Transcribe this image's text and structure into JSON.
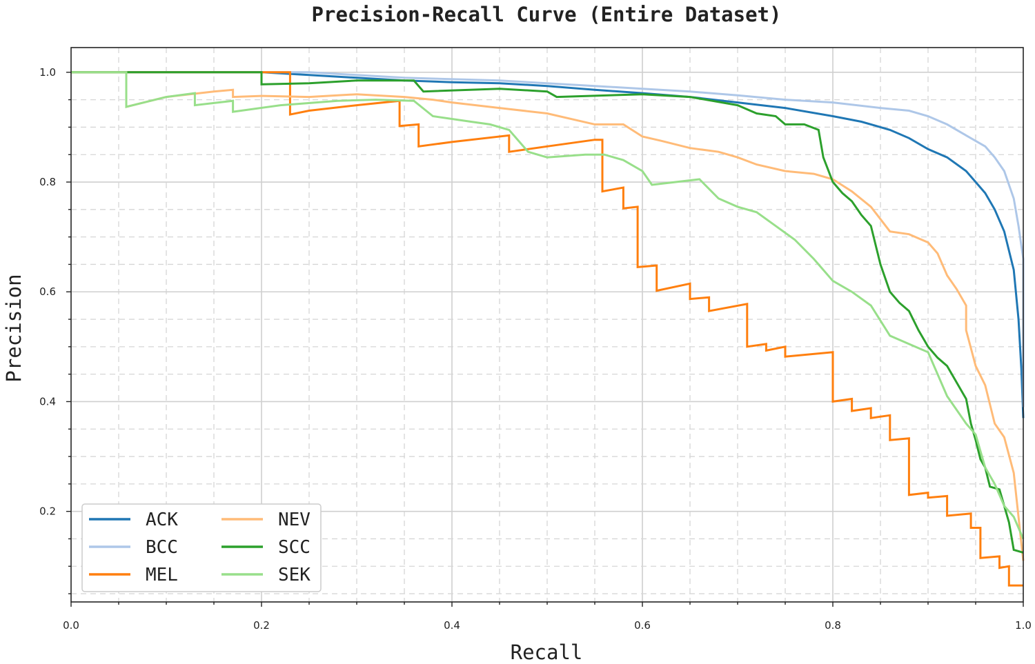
{
  "chart_data": {
    "type": "line",
    "title": "Precision-Recall Curve (Entire Dataset)",
    "xlabel": "Recall",
    "ylabel": "Precision",
    "xlim": [
      0,
      1
    ],
    "ylim": [
      0.035,
      1.045
    ],
    "xticks": [
      "0.0",
      "0.2",
      "0.4",
      "0.6",
      "0.8",
      "1.0"
    ],
    "yticks": [
      "0.2",
      "0.4",
      "0.6",
      "0.8",
      "1.0"
    ],
    "grid": true,
    "legend_position": "lower-left",
    "series": [
      {
        "name": "ACK",
        "color": "#1f77b4",
        "points": [
          [
            0,
            1
          ],
          [
            0.2,
            1
          ],
          [
            0.25,
            0.995
          ],
          [
            0.3,
            0.99
          ],
          [
            0.35,
            0.985
          ],
          [
            0.4,
            0.982
          ],
          [
            0.45,
            0.98
          ],
          [
            0.5,
            0.975
          ],
          [
            0.55,
            0.968
          ],
          [
            0.6,
            0.962
          ],
          [
            0.65,
            0.955
          ],
          [
            0.7,
            0.945
          ],
          [
            0.75,
            0.935
          ],
          [
            0.8,
            0.92
          ],
          [
            0.83,
            0.91
          ],
          [
            0.86,
            0.895
          ],
          [
            0.88,
            0.88
          ],
          [
            0.9,
            0.86
          ],
          [
            0.92,
            0.845
          ],
          [
            0.94,
            0.82
          ],
          [
            0.95,
            0.8
          ],
          [
            0.96,
            0.78
          ],
          [
            0.97,
            0.75
          ],
          [
            0.98,
            0.71
          ],
          [
            0.99,
            0.64
          ],
          [
            0.995,
            0.55
          ],
          [
            0.998,
            0.46
          ],
          [
            1.0,
            0.37
          ]
        ]
      },
      {
        "name": "BCC",
        "color": "#aec7e8",
        "points": [
          [
            0,
            1
          ],
          [
            0.25,
            1
          ],
          [
            0.35,
            0.99
          ],
          [
            0.45,
            0.985
          ],
          [
            0.55,
            0.975
          ],
          [
            0.6,
            0.97
          ],
          [
            0.65,
            0.965
          ],
          [
            0.7,
            0.958
          ],
          [
            0.75,
            0.95
          ],
          [
            0.8,
            0.945
          ],
          [
            0.85,
            0.935
          ],
          [
            0.88,
            0.93
          ],
          [
            0.9,
            0.92
          ],
          [
            0.92,
            0.905
          ],
          [
            0.94,
            0.885
          ],
          [
            0.96,
            0.865
          ],
          [
            0.97,
            0.845
          ],
          [
            0.98,
            0.82
          ],
          [
            0.99,
            0.77
          ],
          [
            0.995,
            0.72
          ],
          [
            1.0,
            0.66
          ],
          [
            1.0,
            0.39
          ]
        ]
      },
      {
        "name": "MEL",
        "color": "#ff7f0e",
        "points": [
          [
            0,
            1
          ],
          [
            0.23,
            1
          ],
          [
            0.23,
            0.923
          ],
          [
            0.25,
            0.93
          ],
          [
            0.3,
            0.94
          ],
          [
            0.345,
            0.948
          ],
          [
            0.345,
            0.902
          ],
          [
            0.365,
            0.905
          ],
          [
            0.365,
            0.865
          ],
          [
            0.4,
            0.873
          ],
          [
            0.46,
            0.885
          ],
          [
            0.46,
            0.855
          ],
          [
            0.5,
            0.865
          ],
          [
            0.55,
            0.877
          ],
          [
            0.558,
            0.877
          ],
          [
            0.558,
            0.783
          ],
          [
            0.58,
            0.79
          ],
          [
            0.58,
            0.752
          ],
          [
            0.595,
            0.755
          ],
          [
            0.595,
            0.645
          ],
          [
            0.615,
            0.648
          ],
          [
            0.615,
            0.602
          ],
          [
            0.65,
            0.615
          ],
          [
            0.65,
            0.587
          ],
          [
            0.67,
            0.59
          ],
          [
            0.67,
            0.565
          ],
          [
            0.71,
            0.578
          ],
          [
            0.71,
            0.5
          ],
          [
            0.73,
            0.505
          ],
          [
            0.73,
            0.493
          ],
          [
            0.75,
            0.5
          ],
          [
            0.75,
            0.482
          ],
          [
            0.8,
            0.49
          ],
          [
            0.8,
            0.4
          ],
          [
            0.82,
            0.405
          ],
          [
            0.82,
            0.383
          ],
          [
            0.84,
            0.388
          ],
          [
            0.84,
            0.37
          ],
          [
            0.86,
            0.375
          ],
          [
            0.86,
            0.33
          ],
          [
            0.88,
            0.333
          ],
          [
            0.88,
            0.23
          ],
          [
            0.9,
            0.234
          ],
          [
            0.9,
            0.225
          ],
          [
            0.92,
            0.228
          ],
          [
            0.92,
            0.192
          ],
          [
            0.945,
            0.196
          ],
          [
            0.945,
            0.17
          ],
          [
            0.955,
            0.17
          ],
          [
            0.955,
            0.115
          ],
          [
            0.975,
            0.118
          ],
          [
            0.975,
            0.097
          ],
          [
            0.985,
            0.1
          ],
          [
            0.985,
            0.065
          ],
          [
            1.0,
            0.065
          ]
        ]
      },
      {
        "name": "NEV",
        "color": "#ffbb78",
        "points": [
          [
            0,
            1
          ],
          [
            0.058,
            1
          ],
          [
            0.058,
            0.937
          ],
          [
            0.1,
            0.955
          ],
          [
            0.15,
            0.965
          ],
          [
            0.17,
            0.968
          ],
          [
            0.17,
            0.955
          ],
          [
            0.2,
            0.957
          ],
          [
            0.25,
            0.955
          ],
          [
            0.3,
            0.96
          ],
          [
            0.35,
            0.955
          ],
          [
            0.38,
            0.95
          ],
          [
            0.4,
            0.945
          ],
          [
            0.45,
            0.935
          ],
          [
            0.5,
            0.925
          ],
          [
            0.55,
            0.905
          ],
          [
            0.58,
            0.905
          ],
          [
            0.6,
            0.883
          ],
          [
            0.62,
            0.875
          ],
          [
            0.65,
            0.862
          ],
          [
            0.68,
            0.855
          ],
          [
            0.7,
            0.845
          ],
          [
            0.72,
            0.832
          ],
          [
            0.75,
            0.82
          ],
          [
            0.78,
            0.815
          ],
          [
            0.8,
            0.805
          ],
          [
            0.82,
            0.783
          ],
          [
            0.84,
            0.755
          ],
          [
            0.86,
            0.71
          ],
          [
            0.88,
            0.705
          ],
          [
            0.9,
            0.69
          ],
          [
            0.91,
            0.67
          ],
          [
            0.92,
            0.63
          ],
          [
            0.93,
            0.605
          ],
          [
            0.94,
            0.575
          ],
          [
            0.94,
            0.53
          ],
          [
            0.95,
            0.465
          ],
          [
            0.96,
            0.43
          ],
          [
            0.97,
            0.36
          ],
          [
            0.98,
            0.335
          ],
          [
            0.99,
            0.27
          ],
          [
            1.0,
            0.11
          ]
        ]
      },
      {
        "name": "SCC",
        "color": "#2ca02c",
        "points": [
          [
            0,
            1
          ],
          [
            0.2,
            1
          ],
          [
            0.2,
            0.978
          ],
          [
            0.25,
            0.98
          ],
          [
            0.3,
            0.985
          ],
          [
            0.36,
            0.985
          ],
          [
            0.37,
            0.965
          ],
          [
            0.45,
            0.97
          ],
          [
            0.5,
            0.965
          ],
          [
            0.51,
            0.955
          ],
          [
            0.6,
            0.96
          ],
          [
            0.65,
            0.955
          ],
          [
            0.7,
            0.94
          ],
          [
            0.72,
            0.925
          ],
          [
            0.74,
            0.92
          ],
          [
            0.75,
            0.905
          ],
          [
            0.77,
            0.905
          ],
          [
            0.785,
            0.895
          ],
          [
            0.79,
            0.845
          ],
          [
            0.8,
            0.8
          ],
          [
            0.81,
            0.78
          ],
          [
            0.82,
            0.765
          ],
          [
            0.83,
            0.74
          ],
          [
            0.84,
            0.72
          ],
          [
            0.85,
            0.65
          ],
          [
            0.86,
            0.6
          ],
          [
            0.87,
            0.58
          ],
          [
            0.88,
            0.565
          ],
          [
            0.89,
            0.53
          ],
          [
            0.9,
            0.5
          ],
          [
            0.91,
            0.48
          ],
          [
            0.92,
            0.465
          ],
          [
            0.93,
            0.435
          ],
          [
            0.94,
            0.405
          ],
          [
            0.945,
            0.36
          ],
          [
            0.95,
            0.33
          ],
          [
            0.955,
            0.295
          ],
          [
            0.96,
            0.28
          ],
          [
            0.965,
            0.245
          ],
          [
            0.975,
            0.24
          ],
          [
            0.985,
            0.18
          ],
          [
            0.99,
            0.13
          ],
          [
            1.0,
            0.125
          ]
        ]
      },
      {
        "name": "SEK",
        "color": "#98df8a",
        "points": [
          [
            0,
            1
          ],
          [
            0.058,
            1
          ],
          [
            0.058,
            0.937
          ],
          [
            0.1,
            0.955
          ],
          [
            0.13,
            0.962
          ],
          [
            0.13,
            0.94
          ],
          [
            0.17,
            0.948
          ],
          [
            0.17,
            0.928
          ],
          [
            0.22,
            0.94
          ],
          [
            0.28,
            0.948
          ],
          [
            0.32,
            0.95
          ],
          [
            0.36,
            0.948
          ],
          [
            0.38,
            0.92
          ],
          [
            0.4,
            0.915
          ],
          [
            0.42,
            0.91
          ],
          [
            0.44,
            0.905
          ],
          [
            0.46,
            0.895
          ],
          [
            0.48,
            0.855
          ],
          [
            0.5,
            0.845
          ],
          [
            0.54,
            0.85
          ],
          [
            0.56,
            0.85
          ],
          [
            0.58,
            0.84
          ],
          [
            0.6,
            0.82
          ],
          [
            0.61,
            0.795
          ],
          [
            0.66,
            0.805
          ],
          [
            0.68,
            0.77
          ],
          [
            0.7,
            0.755
          ],
          [
            0.72,
            0.745
          ],
          [
            0.74,
            0.72
          ],
          [
            0.76,
            0.695
          ],
          [
            0.78,
            0.66
          ],
          [
            0.8,
            0.62
          ],
          [
            0.82,
            0.6
          ],
          [
            0.84,
            0.575
          ],
          [
            0.86,
            0.52
          ],
          [
            0.88,
            0.505
          ],
          [
            0.9,
            0.49
          ],
          [
            0.91,
            0.45
          ],
          [
            0.92,
            0.41
          ],
          [
            0.93,
            0.385
          ],
          [
            0.94,
            0.36
          ],
          [
            0.95,
            0.34
          ],
          [
            0.96,
            0.28
          ],
          [
            0.97,
            0.25
          ],
          [
            0.98,
            0.21
          ],
          [
            0.99,
            0.19
          ],
          [
            1.0,
            0.15
          ]
        ]
      }
    ]
  }
}
